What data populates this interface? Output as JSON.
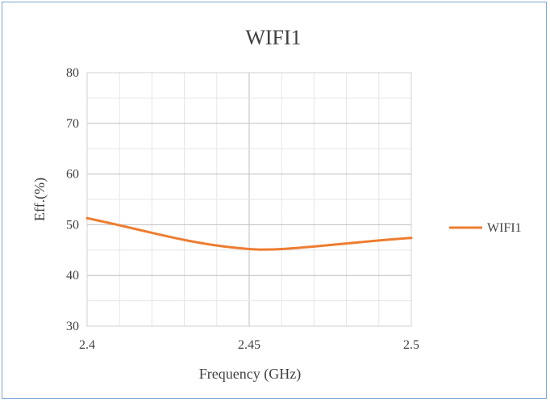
{
  "chart_data": {
    "type": "line",
    "title": "WIFI1",
    "xlabel": "Frequency (GHz)",
    "ylabel": "Eff.(%)",
    "xlim": [
      2.4,
      2.5
    ],
    "ylim": [
      30,
      80
    ],
    "x_ticks": [
      "2.4",
      "2.45",
      "2.5"
    ],
    "y_ticks": [
      "30",
      "40",
      "50",
      "60",
      "70",
      "80"
    ],
    "grid": true,
    "legend_position": "right",
    "series": [
      {
        "name": "WIFI1",
        "color": "#ed7d31",
        "x": [
          2.4,
          2.41,
          2.42,
          2.43,
          2.44,
          2.45,
          2.455,
          2.46,
          2.47,
          2.48,
          2.49,
          2.5
        ],
        "y": [
          51.3,
          49.9,
          48.4,
          47.0,
          45.9,
          45.2,
          45.1,
          45.2,
          45.7,
          46.3,
          46.9,
          47.4
        ]
      }
    ]
  }
}
